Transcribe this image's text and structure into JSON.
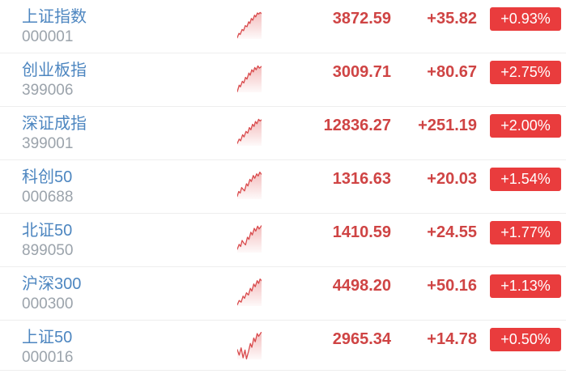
{
  "colors": {
    "name_blue": "#4d86c0",
    "code_gray": "#9ba3ab",
    "price_red": "#cf4444",
    "badge_bg": "#e93c3d",
    "badge_text": "#ffffff",
    "divider": "#eeeeee",
    "sparkline_red": "#d94a4c",
    "background": "#ffffff"
  },
  "indices": [
    {
      "name": "上证指数",
      "code": "000001",
      "price": "3872.59",
      "change": "+35.82",
      "percent": "+0.93%",
      "sparkline": [
        [
          0,
          96
        ],
        [
          7,
          80
        ],
        [
          12,
          84
        ],
        [
          20,
          66
        ],
        [
          26,
          70
        ],
        [
          33,
          52
        ],
        [
          40,
          56
        ],
        [
          47,
          38
        ],
        [
          52,
          44
        ],
        [
          58,
          26
        ],
        [
          64,
          32
        ],
        [
          71,
          14
        ],
        [
          76,
          20
        ],
        [
          83,
          6
        ],
        [
          88,
          10
        ],
        [
          94,
          4
        ],
        [
          100,
          8
        ]
      ]
    },
    {
      "name": "创业板指",
      "code": "399006",
      "price": "3009.71",
      "change": "+80.67",
      "percent": "+2.75%",
      "sparkline": [
        [
          0,
          98
        ],
        [
          8,
          74
        ],
        [
          13,
          80
        ],
        [
          21,
          60
        ],
        [
          27,
          66
        ],
        [
          34,
          46
        ],
        [
          40,
          52
        ],
        [
          48,
          30
        ],
        [
          53,
          38
        ],
        [
          60,
          18
        ],
        [
          66,
          26
        ],
        [
          72,
          10
        ],
        [
          78,
          18
        ],
        [
          85,
          4
        ],
        [
          91,
          12
        ],
        [
          100,
          6
        ]
      ]
    },
    {
      "name": "深证成指",
      "code": "399001",
      "price": "12836.27",
      "change": "+251.19",
      "percent": "+2.00%",
      "sparkline": [
        [
          0,
          92
        ],
        [
          8,
          76
        ],
        [
          14,
          82
        ],
        [
          22,
          60
        ],
        [
          28,
          68
        ],
        [
          36,
          48
        ],
        [
          43,
          54
        ],
        [
          50,
          34
        ],
        [
          56,
          42
        ],
        [
          63,
          22
        ],
        [
          69,
          30
        ],
        [
          75,
          12
        ],
        [
          81,
          20
        ],
        [
          88,
          4
        ],
        [
          94,
          10
        ],
        [
          100,
          6
        ]
      ]
    },
    {
      "name": "科创50",
      "code": "000688",
      "price": "1316.63",
      "change": "+20.03",
      "percent": "+1.54%",
      "sparkline": [
        [
          0,
          90
        ],
        [
          6,
          72
        ],
        [
          12,
          78
        ],
        [
          18,
          58
        ],
        [
          24,
          64
        ],
        [
          30,
          70
        ],
        [
          38,
          44
        ],
        [
          44,
          52
        ],
        [
          52,
          28
        ],
        [
          58,
          36
        ],
        [
          66,
          14
        ],
        [
          72,
          24
        ],
        [
          80,
          8
        ],
        [
          86,
          16
        ],
        [
          93,
          2
        ],
        [
          100,
          10
        ]
      ]
    },
    {
      "name": "北证50",
      "code": "899050",
      "price": "1410.59",
      "change": "+24.55",
      "percent": "+1.77%",
      "sparkline": [
        [
          0,
          88
        ],
        [
          8,
          70
        ],
        [
          14,
          78
        ],
        [
          20,
          56
        ],
        [
          26,
          64
        ],
        [
          34,
          72
        ],
        [
          42,
          44
        ],
        [
          48,
          52
        ],
        [
          56,
          26
        ],
        [
          62,
          36
        ],
        [
          70,
          12
        ],
        [
          76,
          22
        ],
        [
          84,
          4
        ],
        [
          90,
          14
        ],
        [
          100,
          2
        ]
      ]
    },
    {
      "name": "沪深300",
      "code": "000300",
      "price": "4498.20",
      "change": "+50.16",
      "percent": "+1.13%",
      "sparkline": [
        [
          0,
          96
        ],
        [
          8,
          80
        ],
        [
          16,
          86
        ],
        [
          24,
          64
        ],
        [
          30,
          72
        ],
        [
          38,
          52
        ],
        [
          46,
          60
        ],
        [
          54,
          36
        ],
        [
          60,
          46
        ],
        [
          68,
          20
        ],
        [
          74,
          30
        ],
        [
          82,
          8
        ],
        [
          88,
          18
        ],
        [
          94,
          2
        ],
        [
          100,
          8
        ]
      ]
    },
    {
      "name": "上证50",
      "code": "000016",
      "price": "2965.34",
      "change": "+14.78",
      "percent": "+0.50%",
      "sparkline": [
        [
          0,
          64
        ],
        [
          8,
          84
        ],
        [
          16,
          58
        ],
        [
          24,
          94
        ],
        [
          32,
          66
        ],
        [
          38,
          98
        ],
        [
          46,
          72
        ],
        [
          54,
          42
        ],
        [
          60,
          56
        ],
        [
          68,
          22
        ],
        [
          74,
          36
        ],
        [
          82,
          6
        ],
        [
          88,
          16
        ],
        [
          100,
          0
        ]
      ]
    }
  ]
}
